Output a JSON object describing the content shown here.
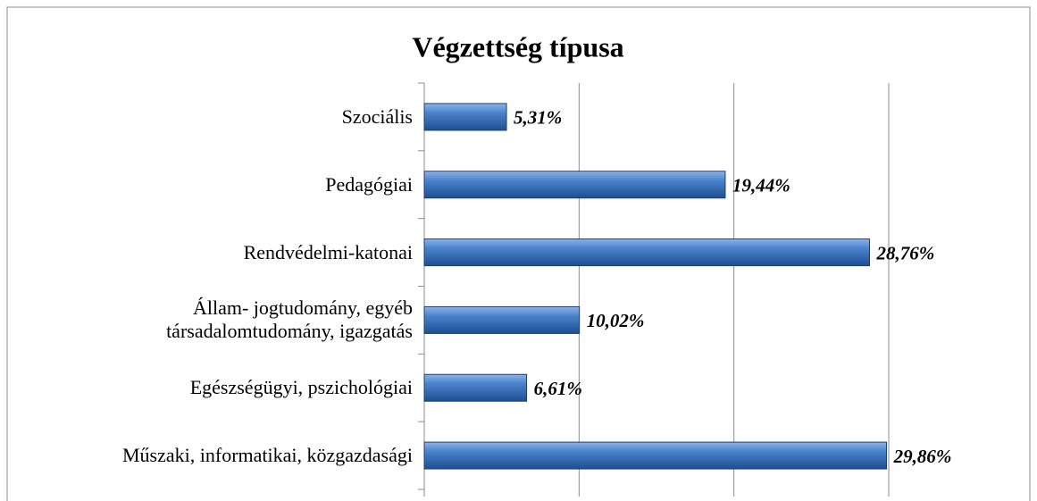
{
  "chart_data": {
    "type": "barh",
    "title": "Végzettség típusa",
    "categories": [
      "Szociális",
      "Pedagógiai",
      "Rendvédelmi-katonai",
      "Állam- jogtudomány, egyéb\ntársadalomtudomány, igazgatás",
      "Egészségügyi, pszichológiai",
      "Műszaki, informatikai, közgazdasági"
    ],
    "values": [
      5.31,
      19.44,
      28.76,
      10.02,
      6.61,
      29.86
    ],
    "value_labels": [
      "5,31%",
      "19,44%",
      "28,76%",
      "10,02%",
      "6,61%",
      "29,86%"
    ],
    "color": "#3a6fb5",
    "xlim": [
      0,
      30
    ],
    "xticks": [
      0,
      10,
      20,
      30
    ],
    "grid": true
  }
}
